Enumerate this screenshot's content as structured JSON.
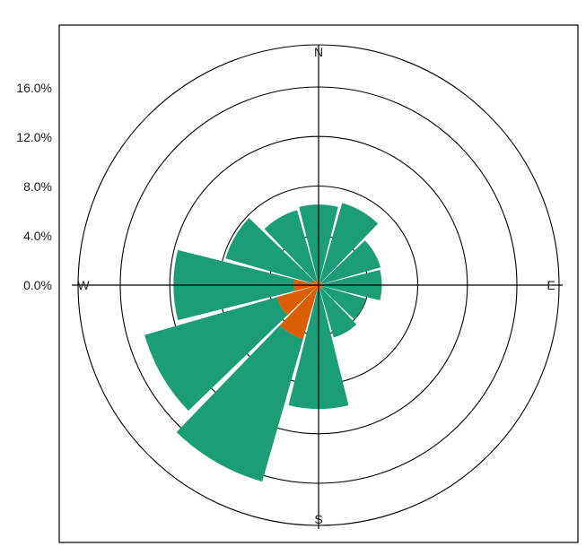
{
  "chart_data": {
    "type": "windrose",
    "title": "",
    "radial_ticks": [
      {
        "value": 0,
        "label": "0.0%"
      },
      {
        "value": 4,
        "label": "4.0%"
      },
      {
        "value": 8,
        "label": "8.0%"
      },
      {
        "value": 12,
        "label": "12.0%"
      },
      {
        "value": 16,
        "label": "16.0%"
      }
    ],
    "rmax": 19.4,
    "directions": {
      "n": "N",
      "e": "E",
      "s": "S",
      "w": "W"
    },
    "sector_width_deg": 30,
    "sector_gap_deg": 2,
    "sectors": [
      {
        "direction_deg": 0,
        "low": 0.4,
        "total": 6.5
      },
      {
        "direction_deg": 30,
        "low": 0.3,
        "total": 6.9
      },
      {
        "direction_deg": 60,
        "low": 0.3,
        "total": 5.2
      },
      {
        "direction_deg": 90,
        "low": 0.3,
        "total": 5.1
      },
      {
        "direction_deg": 120,
        "low": 0.3,
        "total": 4.0
      },
      {
        "direction_deg": 150,
        "low": 0.3,
        "total": 4.4
      },
      {
        "direction_deg": 180,
        "low": 0.5,
        "total": 10.0
      },
      {
        "direction_deg": 210,
        "low": 4.5,
        "total": 16.5
      },
      {
        "direction_deg": 240,
        "low": 3.5,
        "total": 14.6
      },
      {
        "direction_deg": 270,
        "low": 2.0,
        "total": 11.7
      },
      {
        "direction_deg": 300,
        "low": 0.6,
        "total": 7.8
      },
      {
        "direction_deg": 330,
        "low": 0.4,
        "total": 6.3
      }
    ],
    "colors": {
      "low": "#d95f02",
      "high": "#1b9e77"
    },
    "grid": true,
    "legend": "none"
  }
}
